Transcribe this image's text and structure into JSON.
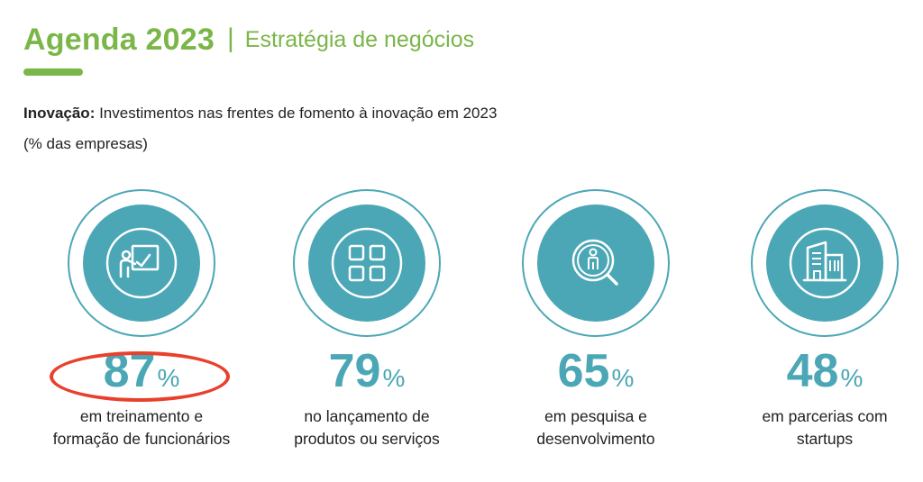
{
  "header": {
    "title": "Agenda 2023",
    "separator": "|",
    "subtitle": "Estratégia de negócios"
  },
  "intro": {
    "bold_label": "Inovação:",
    "text": " Investimentos nas frentes de fomento à inovação em 2023",
    "note": "(% das empresas)"
  },
  "colors": {
    "brand_green": "#7ab648",
    "teal": "#4ba7b5",
    "highlight_red": "#e8402c"
  },
  "stats": [
    {
      "icon": "training-presentation-icon",
      "value": "87",
      "unit": "%",
      "line1": "em treinamento e",
      "line2": "formação de funcionários",
      "highlighted": true
    },
    {
      "icon": "product-grid-icon",
      "value": "79",
      "unit": "%",
      "line1": "no lançamento de",
      "line2": "produtos ou serviços",
      "highlighted": false
    },
    {
      "icon": "research-magnifier-icon",
      "value": "65",
      "unit": "%",
      "line1": "em pesquisa e",
      "line2": "desenvolvimento",
      "highlighted": false
    },
    {
      "icon": "startup-buildings-icon",
      "value": "48",
      "unit": "%",
      "line1": "em parcerias com",
      "line2": "startups",
      "highlighted": false
    }
  ]
}
